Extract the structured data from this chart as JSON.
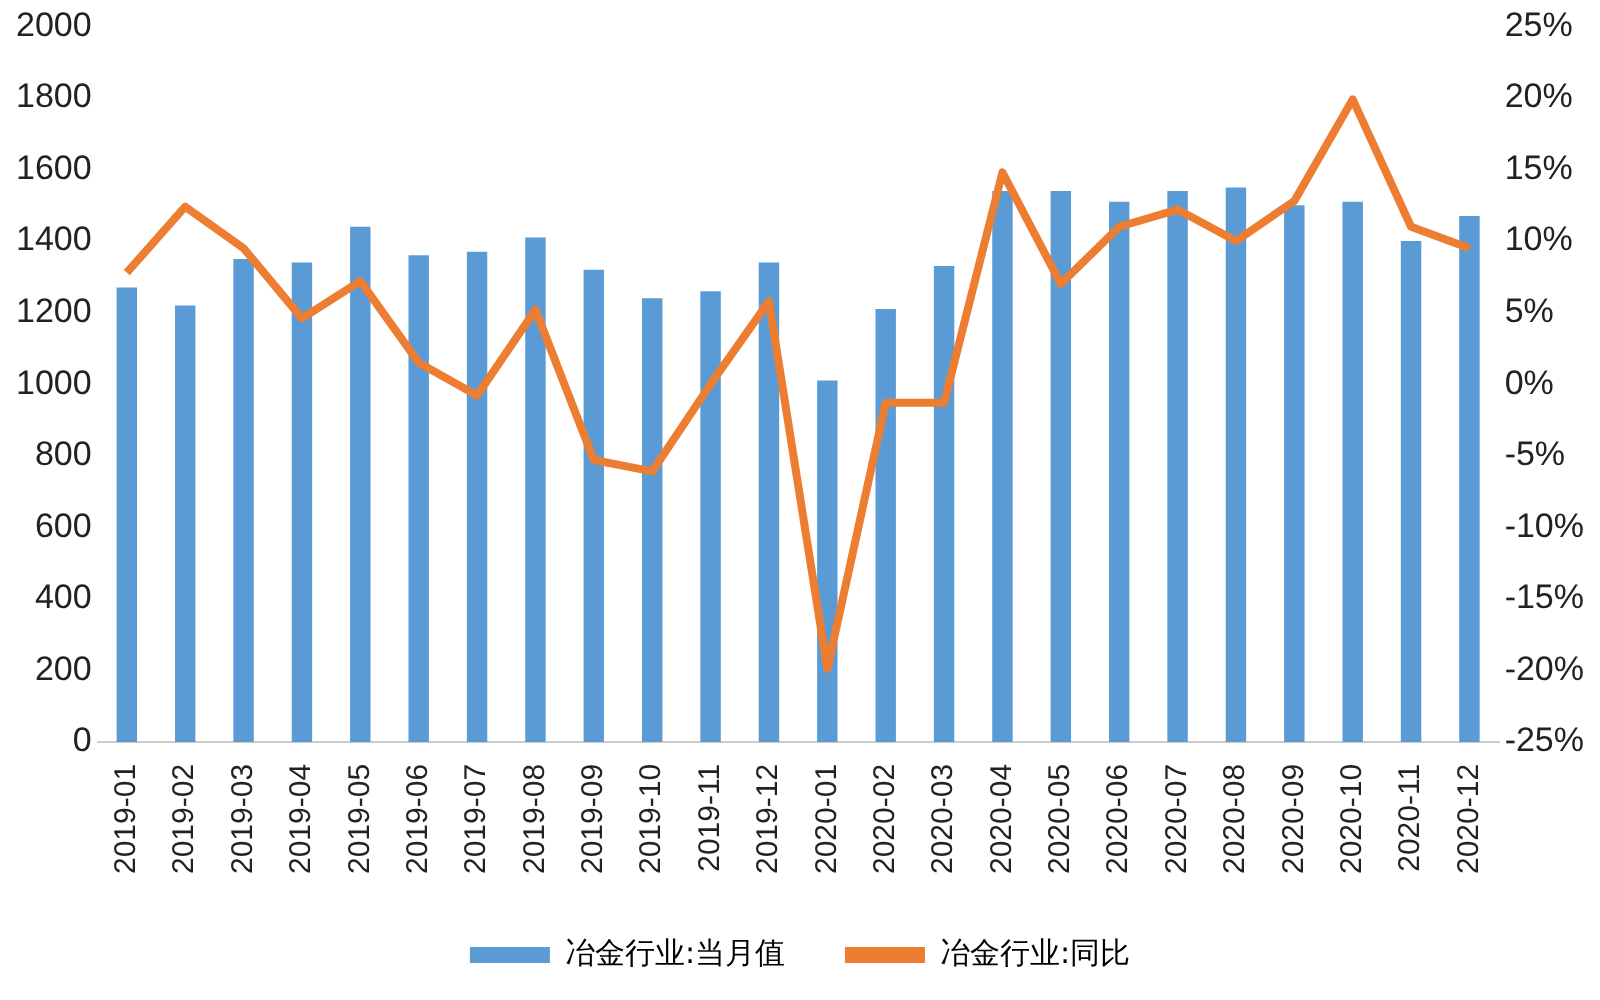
{
  "chart_data": {
    "type": "bar",
    "categories": [
      "2019-01",
      "2019-02",
      "2019-03",
      "2019-04",
      "2019-05",
      "2019-06",
      "2019-07",
      "2019-08",
      "2019-09",
      "2019-10",
      "2019-11",
      "2019-12",
      "2020-01",
      "2020-02",
      "2020-03",
      "2020-04",
      "2020-05",
      "2020-06",
      "2020-07",
      "2020-08",
      "2020-09",
      "2020-10",
      "2020-11",
      "2020-12"
    ],
    "series": [
      {
        "name": "冶金行业:当月值",
        "color": "#5b9bd5",
        "values": [
          1270,
          1220,
          1350,
          1340,
          1440,
          1360,
          1370,
          1410,
          1320,
          1240,
          1260,
          1340,
          1010,
          1210,
          1330,
          1540,
          1540,
          1510,
          1540,
          1550,
          1500,
          1510,
          1400,
          1470
        ]
      },
      {
        "name": "冶金行业:同比",
        "type": "line",
        "axis": "y2",
        "color": "#ed7d31",
        "values": [
          7.8,
          12.4,
          9.5,
          4.6,
          7.2,
          1.5,
          -0.8,
          5.2,
          -5.3,
          -6.1,
          0,
          5.8,
          -19.9,
          -1.3,
          -1.3,
          14.8,
          7,
          11,
          12.2,
          10,
          12.8,
          19.9,
          11,
          9.5
        ]
      }
    ],
    "ylim": [
      0,
      2000
    ],
    "yticks": [
      0,
      200,
      400,
      600,
      800,
      1000,
      1200,
      1400,
      1600,
      1800,
      2000
    ],
    "y2lim": [
      -25,
      25
    ],
    "y2ticks": [
      {
        "value": -25,
        "label": "-25%"
      },
      {
        "value": -20,
        "label": "-20%"
      },
      {
        "value": -15,
        "label": "-15%"
      },
      {
        "value": -10,
        "label": "-10%"
      },
      {
        "value": -5,
        "label": "-5%"
      },
      {
        "value": 0,
        "label": "0%"
      },
      {
        "value": 5,
        "label": "5%"
      },
      {
        "value": 10,
        "label": "10%"
      },
      {
        "value": 15,
        "label": "15%"
      },
      {
        "value": 20,
        "label": "20%"
      },
      {
        "value": 25,
        "label": "25%"
      }
    ],
    "grid": false,
    "legend": "bottom",
    "marker": "none"
  }
}
